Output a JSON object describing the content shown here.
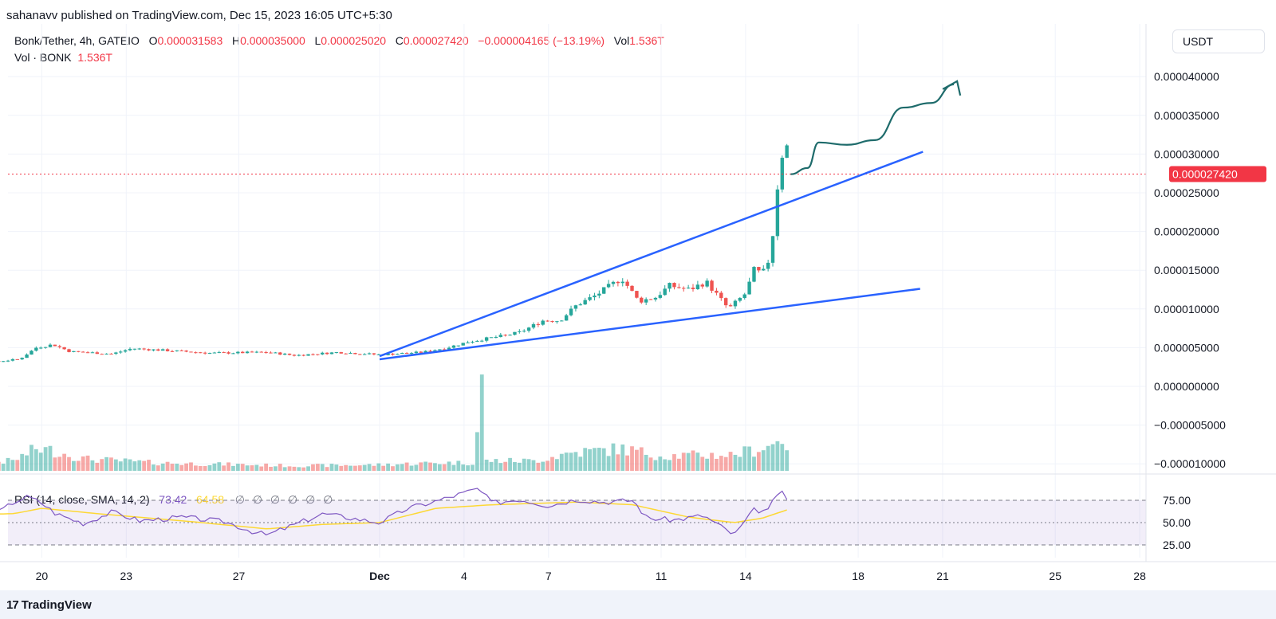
{
  "header": {
    "publisher_line": "sahanavv published on TradingView.com, Dec 15, 2023 16:05 UTC+5:30"
  },
  "legend": {
    "symbol": "Bonk/Tether, 4h, GATEIO",
    "o_label": "O",
    "o_value": "0.000031583",
    "h_label": "H",
    "h_value": "0.000035000",
    "l_label": "L",
    "l_value": "0.000025020",
    "c_label": "C",
    "c_value": "0.000027420",
    "change": "−0.000004165 (−13.19%)",
    "vol_label": "Vol",
    "vol_value": "1.536T",
    "vol_series_label": "Vol · BONK",
    "vol_series_value": "1.536T"
  },
  "currency_button": "USDT",
  "last_price_badge": "0.000027420",
  "rsi_legend": {
    "label": "RSI (14, close, SMA, 14, 2)",
    "rsi_value": "73.42",
    "sma_value": "64.58",
    "icons": "∅ ∅ ∅ ∅ ∅ ∅"
  },
  "footer": {
    "brand": "TradingView",
    "logo_mark": "17"
  },
  "colors": {
    "up": "#26a69a",
    "down": "#ef5350",
    "trendline": "#2962ff",
    "arrow": "#1e6b6b",
    "rsi": "#7e57c2",
    "rsi_sma": "#fdd835",
    "last_price": "#f23645"
  },
  "chart_data": {
    "type": "candlestick",
    "pair": "Bonk/Tether",
    "interval": "4h",
    "exchange": "GATEIO",
    "price_axis_labels": [
      "0.000040000",
      "0.000035000",
      "0.000030000",
      "0.000025000",
      "0.000020000",
      "0.000015000",
      "0.000010000",
      "0.000005000",
      "0.000000000",
      "−0.000005000",
      "−0.000010000"
    ],
    "price_axis_values": [
      4e-05,
      3.5e-05,
      3e-05,
      2.5e-05,
      2e-05,
      1.5e-05,
      1e-05,
      5e-06,
      0,
      -5e-06,
      -1e-05
    ],
    "x_tick_labels": [
      "20",
      "23",
      "27",
      "Dec",
      "4",
      "7",
      "11",
      "14",
      "18",
      "21",
      "25",
      "28"
    ],
    "x_tick_days": [
      -11,
      -8,
      -4,
      1,
      4,
      7,
      11,
      14,
      18,
      21,
      25,
      28
    ],
    "last_close": 2.742e-05,
    "price_path": [
      [
        -15.2,
        2.9e-06
      ],
      [
        -13,
        3.1e-06
      ],
      [
        -11.8,
        3.5e-06
      ],
      [
        -11.2,
        5e-06
      ],
      [
        -10.6,
        5.4e-06
      ],
      [
        -10,
        4.5e-06
      ],
      [
        -8.5,
        4.2e-06
      ],
      [
        -7.8,
        4.9e-06
      ],
      [
        -5,
        4.3e-06
      ],
      [
        -3,
        4.4e-06
      ],
      [
        -2,
        4e-06
      ],
      [
        -0.5,
        4.4e-06
      ],
      [
        1,
        4.1e-06
      ],
      [
        2.5,
        4.4e-06
      ],
      [
        3.4,
        5e-06
      ],
      [
        4.2,
        5.8e-06
      ],
      [
        5.5,
        6.6e-06
      ],
      [
        6,
        7e-06
      ],
      [
        6.8,
        8.5e-06
      ],
      [
        7.4,
        8.5e-06
      ],
      [
        8,
        1.05e-05
      ],
      [
        8.7,
        1.18e-05
      ],
      [
        9.6,
        1.4e-05
      ],
      [
        10.2,
        1.1e-05
      ],
      [
        10.8,
        1.15e-05
      ],
      [
        11.3,
        1.3e-05
      ],
      [
        12,
        1.25e-05
      ],
      [
        12.6,
        1.35e-05
      ],
      [
        13.4,
        1e-05
      ],
      [
        14,
        1.2e-05
      ],
      [
        14.3,
        1.5e-05
      ],
      [
        14.6,
        1.45e-05
      ],
      [
        14.9,
        1.7e-05
      ],
      [
        15.1,
        2.5e-05
      ],
      [
        15.3,
        3e-05
      ],
      [
        15.45,
        3.16e-05
      ],
      [
        15.55,
        2.742e-05
      ]
    ],
    "volume_path": [
      [
        -15.2,
        0.06
      ],
      [
        -12,
        0.1
      ],
      [
        -11.2,
        0.22
      ],
      [
        -10.6,
        0.2
      ],
      [
        -9.5,
        0.12
      ],
      [
        -7,
        0.08
      ],
      [
        -2,
        0.05
      ],
      [
        1,
        0.06
      ],
      [
        3,
        0.08
      ],
      [
        4.4,
        0.08
      ],
      [
        4.6,
        1.0
      ],
      [
        4.8,
        0.1
      ],
      [
        6.5,
        0.1
      ],
      [
        7.8,
        0.18
      ],
      [
        9.6,
        0.22
      ],
      [
        11,
        0.15
      ],
      [
        13.5,
        0.16
      ],
      [
        14.5,
        0.22
      ],
      [
        15.1,
        0.28
      ],
      [
        15.3,
        0.32
      ],
      [
        15.5,
        0.24
      ]
    ],
    "upper_trendline": [
      [
        1.0,
        3.9e-06
      ],
      [
        20.3,
        3.03e-05
      ]
    ],
    "lower_trendline": [
      [
        1.0,
        3.5e-06
      ],
      [
        20.2,
        1.26e-05
      ]
    ],
    "projection_path": [
      [
        15.6,
        2.74e-05
      ],
      [
        16.2,
        2.82e-05
      ],
      [
        16.6,
        3.15e-05
      ],
      [
        17.6,
        3.12e-05
      ],
      [
        18.6,
        3.18e-05
      ],
      [
        19.6,
        3.6e-05
      ],
      [
        20.6,
        3.66e-05
      ],
      [
        21.4,
        3.9e-05
      ]
    ],
    "rsi": {
      "length": 14,
      "source": "close",
      "smoothing": "SMA",
      "smoothing_length": 14,
      "value": 73.42,
      "sma_value": 64.58,
      "levels": [
        75,
        50,
        25
      ],
      "axis_labels": [
        "75.00",
        "50.00",
        "25.00"
      ],
      "rsi_path": [
        [
          -15.2,
          50
        ],
        [
          -14,
          54
        ],
        [
          -12.8,
          56
        ],
        [
          -12,
          73
        ],
        [
          -11.5,
          79
        ],
        [
          -11,
          72
        ],
        [
          -10.5,
          60
        ],
        [
          -9.5,
          49
        ],
        [
          -8.5,
          62
        ],
        [
          -7.5,
          52
        ],
        [
          -6,
          56
        ],
        [
          -4.5,
          51
        ],
        [
          -3.5,
          40
        ],
        [
          -3,
          36
        ],
        [
          -2,
          48
        ],
        [
          -1,
          60
        ],
        [
          0,
          55
        ],
        [
          1,
          50
        ],
        [
          2,
          66
        ],
        [
          3,
          74
        ],
        [
          4.5,
          88
        ],
        [
          5,
          72
        ],
        [
          6,
          76
        ],
        [
          7,
          69
        ],
        [
          8,
          76
        ],
        [
          9,
          73
        ],
        [
          10,
          75
        ],
        [
          10.5,
          55
        ],
        [
          11.5,
          53
        ],
        [
          12.5,
          58
        ],
        [
          13.2,
          44
        ],
        [
          13.6,
          36
        ],
        [
          14.3,
          64
        ],
        [
          14.8,
          63
        ],
        [
          15.2,
          87
        ],
        [
          15.5,
          73
        ]
      ],
      "sma_path": [
        [
          -15.2,
          58
        ],
        [
          -12,
          60
        ],
        [
          -11,
          66
        ],
        [
          -9,
          60
        ],
        [
          -6,
          52
        ],
        [
          -3,
          43
        ],
        [
          -1,
          48
        ],
        [
          1,
          50
        ],
        [
          3,
          66
        ],
        [
          5,
          70
        ],
        [
          8,
          73
        ],
        [
          10,
          70
        ],
        [
          12,
          56
        ],
        [
          13.6,
          50
        ],
        [
          14.6,
          55
        ],
        [
          15.5,
          64.58
        ]
      ]
    }
  }
}
